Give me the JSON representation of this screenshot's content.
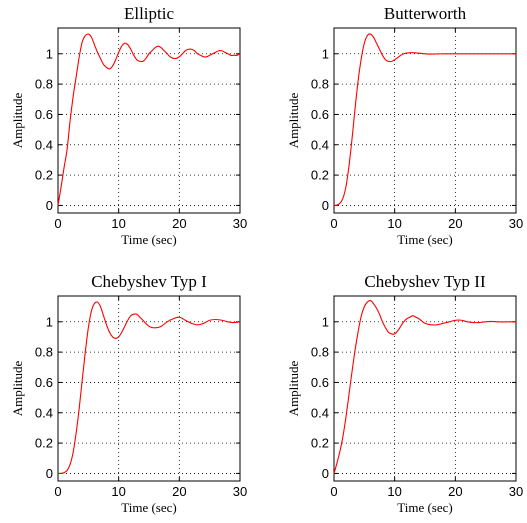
{
  "chart_data": [
    {
      "type": "line",
      "title": "Elliptic",
      "xlabel": "Time (sec)",
      "ylabel": "Amplitude",
      "xlim": [
        0,
        30
      ],
      "ylim": [
        -0.05,
        1.17
      ],
      "xticks": [
        0,
        10,
        20,
        30
      ],
      "yticks": [
        0,
        0.2,
        0.4,
        0.6,
        0.8,
        1
      ],
      "grid": true,
      "color": "#ff0000",
      "series": [
        {
          "x": [
            0,
            0.5,
            1,
            1.5,
            2,
            2.5,
            3,
            3.5,
            4,
            4.5,
            5,
            5.5,
            6,
            6.5,
            7,
            7.5,
            8,
            8.5,
            9,
            9.5,
            10,
            10.5,
            11,
            11.5,
            12,
            12.5,
            13,
            13.5,
            14,
            14.5,
            15,
            15.5,
            16,
            16.5,
            17,
            17.5,
            18,
            18.5,
            19,
            19.5,
            20,
            20.5,
            21,
            21.5,
            22,
            22.5,
            23,
            23.5,
            24,
            24.5,
            25,
            25.5,
            26,
            26.5,
            27,
            27.5,
            28,
            28.5,
            29,
            29.5,
            30
          ],
          "values": [
            0,
            0.12,
            0.25,
            0.37,
            0.56,
            0.72,
            0.85,
            0.98,
            1.08,
            1.12,
            1.13,
            1.11,
            1.06,
            1.01,
            0.97,
            0.93,
            0.91,
            0.9,
            0.92,
            0.96,
            1.01,
            1.05,
            1.07,
            1.06,
            1.03,
            0.99,
            0.96,
            0.95,
            0.95,
            0.97,
            1,
            1.02,
            1.04,
            1.05,
            1.04,
            1.02,
            1,
            0.98,
            0.97,
            0.97,
            0.98,
            1,
            1.02,
            1.03,
            1.03,
            1.02,
            1,
            0.99,
            0.98,
            0.98,
            0.99,
            1,
            1.01,
            1.02,
            1.02,
            1.01,
            1,
            0.99,
            0.99,
            0.99,
            1
          ]
        }
      ]
    },
    {
      "type": "line",
      "title": "Butterworth",
      "xlabel": "Time (sec)",
      "ylabel": "Amplitude",
      "xlim": [
        0,
        30
      ],
      "ylim": [
        -0.05,
        1.17
      ],
      "xticks": [
        0,
        10,
        20,
        30
      ],
      "yticks": [
        0,
        0.2,
        0.4,
        0.6,
        0.8,
        1
      ],
      "grid": true,
      "color": "#ff0000",
      "series": [
        {
          "x": [
            0,
            0.5,
            1,
            1.5,
            2,
            2.5,
            3,
            3.5,
            4,
            4.5,
            5,
            5.5,
            6,
            6.5,
            7,
            7.5,
            8,
            8.5,
            9,
            9.5,
            10,
            10.5,
            11,
            11.5,
            12,
            13,
            14,
            15,
            16,
            17,
            18,
            19,
            20,
            21,
            22,
            23,
            24,
            25,
            26,
            27,
            28,
            29,
            30
          ],
          "values": [
            0,
            0.003,
            0.015,
            0.05,
            0.13,
            0.27,
            0.45,
            0.65,
            0.83,
            0.97,
            1.07,
            1.12,
            1.13,
            1.11,
            1.07,
            1.03,
            0.99,
            0.96,
            0.95,
            0.95,
            0.96,
            0.975,
            0.99,
            1,
            1.005,
            1.007,
            1.004,
            1,
            0.998,
            0.999,
            1,
            1,
            1,
            1,
            1,
            1,
            1,
            1,
            1,
            1,
            1,
            1,
            1
          ]
        }
      ]
    },
    {
      "type": "line",
      "title": "Chebyshev Typ I",
      "xlabel": "Time (sec)",
      "ylabel": "Amplitude",
      "xlim": [
        0,
        30
      ],
      "ylim": [
        -0.05,
        1.17
      ],
      "xticks": [
        0,
        10,
        20,
        30
      ],
      "yticks": [
        0,
        0.2,
        0.4,
        0.6,
        0.8,
        1
      ],
      "grid": true,
      "color": "#ff0000",
      "series": [
        {
          "x": [
            0,
            0.5,
            1,
            1.5,
            2,
            2.5,
            3,
            3.5,
            4,
            4.5,
            5,
            5.5,
            6,
            6.5,
            7,
            7.5,
            8,
            8.5,
            9,
            9.5,
            10,
            10.5,
            11,
            11.5,
            12,
            12.5,
            13,
            13.5,
            14,
            15,
            16,
            17,
            18,
            19,
            20,
            21,
            22,
            23,
            24,
            25,
            26,
            27,
            28,
            29,
            30
          ],
          "values": [
            0,
            0,
            0.005,
            0.02,
            0.06,
            0.14,
            0.27,
            0.43,
            0.62,
            0.8,
            0.96,
            1.07,
            1.12,
            1.13,
            1.1,
            1.04,
            0.98,
            0.93,
            0.9,
            0.89,
            0.9,
            0.93,
            0.97,
            1.01,
            1.04,
            1.05,
            1.05,
            1.03,
            1.01,
            0.97,
            0.96,
            0.97,
            1,
            1.02,
            1.03,
            1.01,
            0.99,
            0.98,
            0.99,
            1.01,
            1.015,
            1.01,
            1,
            0.995,
            1
          ]
        }
      ]
    },
    {
      "type": "line",
      "title": "Chebyshev Typ II",
      "xlabel": "Time (sec)",
      "ylabel": "Amplitude",
      "xlim": [
        0,
        30
      ],
      "ylim": [
        -0.05,
        1.17
      ],
      "xticks": [
        0,
        10,
        20,
        30
      ],
      "yticks": [
        0,
        0.2,
        0.4,
        0.6,
        0.8,
        1
      ],
      "grid": true,
      "color": "#ff0000",
      "series": [
        {
          "x": [
            0,
            0.5,
            1,
            1.5,
            2,
            2.5,
            3,
            3.5,
            4,
            4.5,
            5,
            5.5,
            6,
            6.5,
            7,
            7.5,
            8,
            8.5,
            9,
            9.5,
            10,
            10.5,
            11,
            11.5,
            12,
            12.5,
            13,
            13.5,
            14,
            15,
            16,
            17,
            18,
            19,
            20,
            21,
            22,
            23,
            24,
            25,
            26,
            27,
            28,
            29,
            30
          ],
          "values": [
            0,
            0.07,
            0.15,
            0.25,
            0.38,
            0.53,
            0.68,
            0.82,
            0.94,
            1.04,
            1.1,
            1.13,
            1.14,
            1.12,
            1.09,
            1.05,
            1,
            0.96,
            0.93,
            0.92,
            0.92,
            0.94,
            0.97,
            1,
            1.02,
            1.03,
            1.04,
            1.03,
            1.02,
            0.99,
            0.98,
            0.98,
            0.99,
            1,
            1.01,
            1.01,
            1,
            0.995,
            0.995,
            1,
            1.002,
            1,
            0.999,
            1,
            1
          ]
        }
      ]
    }
  ]
}
